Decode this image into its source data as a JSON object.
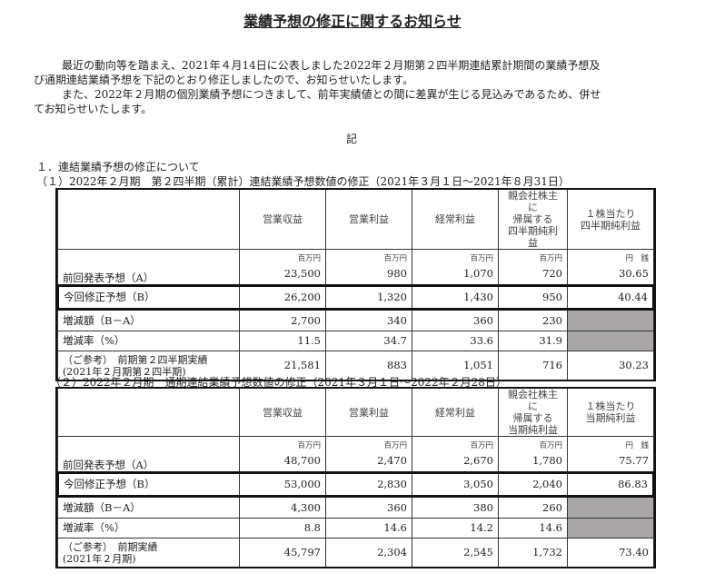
{
  "title": "業績予想の修正に関するお知らせ",
  "paragraphs": [
    "　最近の動向等を踏まえ、2021年４月14日に公表しました2022年２月期第２四半期連結累計期間の業績予想及",
    "び通期連結業績予想を下記のとおり修正しましたので、お知らせいたします。",
    "　また、2022年２月期の個別業績予想につきまして、前年実績値との間に差異が生じる見込みであるため、併せ",
    "てお知らせいたします。"
  ],
  "ki": "記",
  "section1": "１．連結業績予想の修正について",
  "tables": [
    {
      "caption": "（１）2022年２月期　第２四半期（累計）連結業績予想数値の修正（2021年３月１日～2021年８月31日）",
      "headers": [
        "営業収益",
        "営業利益",
        "経常利益",
        "親会社株主に\n帰属する\n四半期純利益",
        "１株当たり\n四半期純利益"
      ],
      "units": [
        "百万円",
        "百万円",
        "百万円",
        "百万円",
        "円　銭"
      ],
      "rows": [
        {
          "label": "前回発表予想（A）",
          "values": [
            "23,500",
            "980",
            "1,070",
            "720",
            "30.65"
          ]
        },
        {
          "label": "今回修正予想（B）",
          "values": [
            "26,200",
            "1,320",
            "1,430",
            "950",
            "40.44"
          ]
        },
        {
          "label": "増減額（B－A）",
          "values": [
            "2,700",
            "340",
            "360",
            "230",
            ""
          ]
        },
        {
          "label": "増減率（%）",
          "values": [
            "11.5",
            "34.7",
            "33.6",
            "31.9",
            ""
          ]
        },
        {
          "label": "（ご参考）　前期第２四半期実績\n(2021年２月期第２四半期)",
          "values": [
            "21,581",
            "883",
            "1,051",
            "716",
            "30.23"
          ]
        }
      ]
    },
    {
      "caption": "（２）2022年２月期　通期連結業績予想数値の修正（2021年３月１日～2022年２月28日）",
      "headers": [
        "営業収益",
        "営業利益",
        "経常利益",
        "親会社株主に\n帰属する\n当期純利益",
        "１株当たり\n当期純利益"
      ],
      "units": [
        "百万円",
        "百万円",
        "百万円",
        "百万円",
        "円　銭"
      ],
      "rows": [
        {
          "label": "前回発表予想（A）",
          "values": [
            "48,700",
            "2,470",
            "2,670",
            "1,780",
            "75.77"
          ]
        },
        {
          "label": "今回修正予想（B）",
          "values": [
            "53,000",
            "2,830",
            "3,050",
            "2,040",
            "86.83"
          ]
        },
        {
          "label": "増減額（B－A）",
          "values": [
            "4,300",
            "360",
            "380",
            "260",
            ""
          ]
        },
        {
          "label": "増減率（%）",
          "values": [
            "8.8",
            "14.6",
            "14.2",
            "14.6",
            ""
          ]
        },
        {
          "label": "（ご参考）　前期実績\n(2021年２月期)",
          "values": [
            "45,797",
            "2,304",
            "2,545",
            "1,732",
            "73.40"
          ]
        }
      ]
    }
  ]
}
